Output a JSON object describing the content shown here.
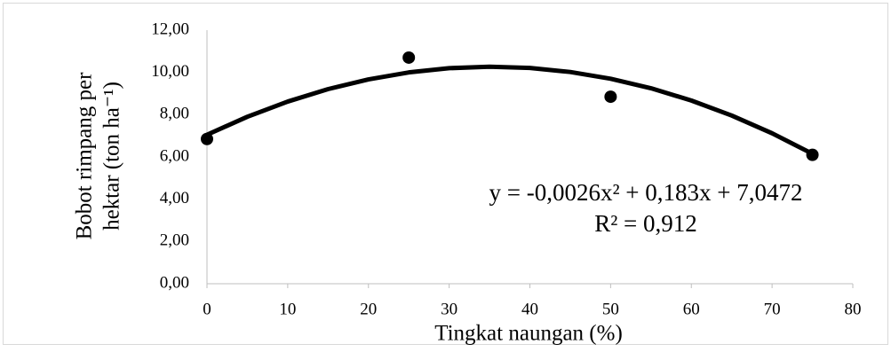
{
  "chart_data": {
    "type": "scatter",
    "x_label": "Tingkat naungan (%)",
    "y_label": [
      "Bobot rimpang per",
      "hektar (ton ha⁻¹)"
    ],
    "series": [
      {
        "color": "#000000",
        "x": [
          0,
          25,
          50,
          75
        ],
        "values": [
          6.85,
          10.7,
          8.85,
          6.1
        ]
      }
    ],
    "trendline": {
      "color": "#000000",
      "x": [
        0,
        5,
        10,
        15,
        20,
        25,
        30,
        35,
        40,
        45,
        50,
        55,
        60,
        65,
        70,
        75
      ],
      "values": [
        7.05,
        7.9,
        8.62,
        9.21,
        9.67,
        10.0,
        10.2,
        10.27,
        10.21,
        10.02,
        9.7,
        9.25,
        8.67,
        7.96,
        7.12,
        6.15
      ]
    },
    "annotations": [
      "y = -0,0026x² + 0,183x + 7,0472",
      "R² = 0,912"
    ],
    "xlim": [
      0,
      80
    ],
    "ylim": [
      0,
      12
    ],
    "xticks": [
      0,
      10,
      20,
      30,
      40,
      50,
      60,
      70,
      80
    ],
    "yticks": [
      {
        "value": 0,
        "label": "0,00"
      },
      {
        "value": 2,
        "label": "2,00"
      },
      {
        "value": 4,
        "label": "4,00"
      },
      {
        "value": 6,
        "label": "6,00"
      },
      {
        "value": 8,
        "label": "8,00"
      },
      {
        "value": 10,
        "label": "10,00"
      },
      {
        "value": 12,
        "label": "12,00"
      }
    ],
    "grid": false
  }
}
